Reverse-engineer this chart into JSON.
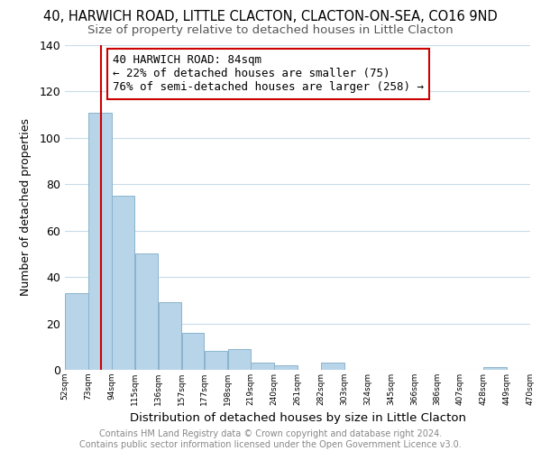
{
  "title1": "40, HARWICH ROAD, LITTLE CLACTON, CLACTON-ON-SEA, CO16 9ND",
  "title2": "Size of property relative to detached houses in Little Clacton",
  "xlabel": "Distribution of detached houses by size in Little Clacton",
  "ylabel": "Number of detached properties",
  "bar_edges": [
    52,
    73,
    94,
    115,
    136,
    157,
    177,
    198,
    219,
    240,
    261,
    282,
    303,
    324,
    345,
    366,
    386,
    407,
    428,
    449,
    470
  ],
  "bar_heights": [
    33,
    111,
    75,
    50,
    29,
    16,
    8,
    9,
    3,
    2,
    0,
    3,
    0,
    0,
    0,
    0,
    0,
    0,
    1,
    0
  ],
  "bar_color": "#b8d4e8",
  "bar_edge_color": "#8ab4cc",
  "property_line_x": 84,
  "property_line_color": "#cc0000",
  "annotation_line1": "40 HARWICH ROAD: 84sqm",
  "annotation_line2": "← 22% of detached houses are smaller (75)",
  "annotation_line3": "76% of semi-detached houses are larger (258) →",
  "annotation_box_color": "#ffffff",
  "annotation_box_edge": "#cc0000",
  "ylim": [
    0,
    140
  ],
  "yticks": [
    0,
    20,
    40,
    60,
    80,
    100,
    120,
    140
  ],
  "xtick_labels": [
    "52sqm",
    "73sqm",
    "94sqm",
    "115sqm",
    "136sqm",
    "157sqm",
    "177sqm",
    "198sqm",
    "219sqm",
    "240sqm",
    "261sqm",
    "282sqm",
    "303sqm",
    "324sqm",
    "345sqm",
    "366sqm",
    "386sqm",
    "407sqm",
    "428sqm",
    "449sqm",
    "470sqm"
  ],
  "background_color": "#ffffff",
  "grid_color": "#c8dcea",
  "footer_text": "Contains HM Land Registry data © Crown copyright and database right 2024.\nContains public sector information licensed under the Open Government Licence v3.0.",
  "title1_fontsize": 10.5,
  "title2_fontsize": 9.5,
  "xlabel_fontsize": 9.5,
  "ylabel_fontsize": 9,
  "annotation_fontsize": 9,
  "footer_fontsize": 7
}
